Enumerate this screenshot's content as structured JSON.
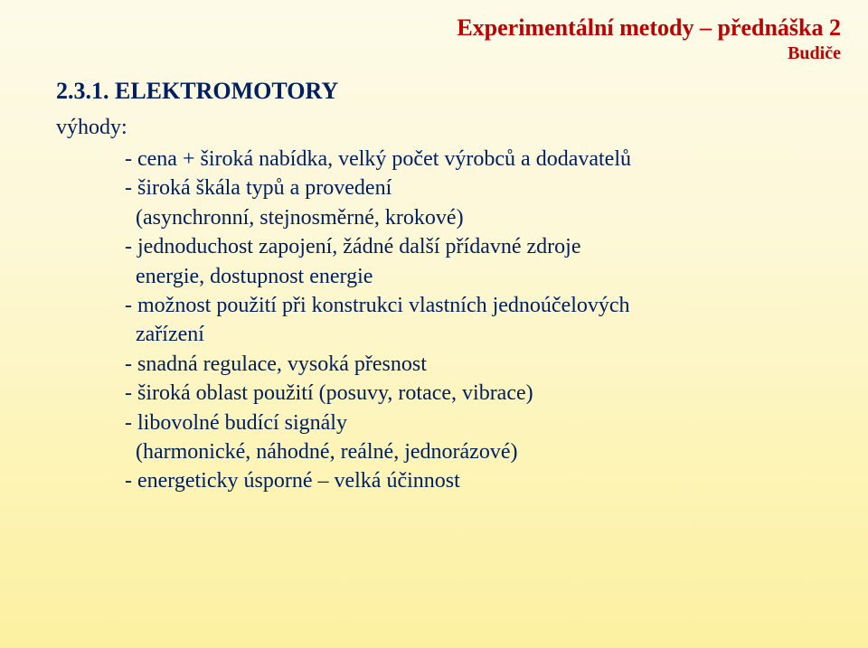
{
  "header": {
    "title": "Experimentální metody – přednáška 2",
    "subtitle": "Budiče"
  },
  "section": {
    "number_title": "2.3.1. ELEKTROMOTORY",
    "advantages_label": "výhody:"
  },
  "bullets": {
    "l1": "- cena + široká nabídka, velký počet výrobců a dodavatelů",
    "l2": "- široká škála typů a provedení",
    "l3": "  (asynchronní, stejnosměrné, krokové)",
    "l4": "- jednoduchost zapojení, žádné další přídavné zdroje",
    "l5": "  energie, dostupnost energie",
    "l6": "- možnost použití při konstrukci vlastních jednoúčelových",
    "l7": "  zařízení",
    "l8": "- snadná regulace, vysoká přesnost",
    "l9": "- široká oblast použití (posuvy, rotace, vibrace)",
    "l10": "- libovolné budící signály",
    "l11": "  (harmonické, náhodné, reálné, jednorázové)",
    "l12": "- energeticky úsporné – velká účinnost"
  },
  "colors": {
    "heading": "#c00000",
    "body": "#002060",
    "bg_top": "#fdfae8",
    "bg_bottom": "#fcf0a0"
  }
}
